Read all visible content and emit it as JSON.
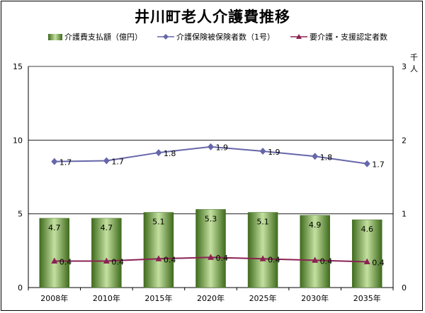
{
  "title": "井川町老人介護費推移",
  "unit_right": "千人",
  "legend": {
    "cost": "介護費支払額（億円）",
    "insured": "介護保険被保険者数（1号）",
    "certified": "要介護・支援認定者数"
  },
  "colors": {
    "bar_dark": "#3f6b1d",
    "bar_light": "#c4e0a0",
    "insured_line": "#6666aa",
    "certified_line": "#8b2252"
  },
  "chart_data": {
    "type": "bar",
    "title": "井川町老人介護費推移",
    "categories": [
      "2008年",
      "2010年",
      "2015年",
      "2020年",
      "2025年",
      "2030年",
      "2035年"
    ],
    "series": [
      {
        "name": "介護費支払額（億円）",
        "type": "bar",
        "axis": "left",
        "values": [
          4.7,
          4.7,
          5.1,
          5.3,
          5.1,
          4.9,
          4.6
        ]
      },
      {
        "name": "介護保険被保険者数（1号）",
        "type": "line",
        "axis": "right",
        "marker": "diamond",
        "values": [
          1.7,
          1.7,
          1.8,
          1.9,
          1.9,
          1.8,
          1.7
        ],
        "plot_values": [
          1.71,
          1.72,
          1.83,
          1.91,
          1.85,
          1.78,
          1.68
        ]
      },
      {
        "name": "要介護・支援認定者数",
        "type": "line",
        "axis": "right",
        "marker": "triangle",
        "values": [
          0.4,
          0.4,
          0.4,
          0.4,
          0.4,
          0.4,
          0.4
        ],
        "plot_values": [
          0.36,
          0.36,
          0.39,
          0.41,
          0.39,
          0.37,
          0.35
        ]
      }
    ],
    "y_left": {
      "min": 0,
      "max": 15,
      "ticks": [
        "0",
        "5",
        "10",
        "15"
      ]
    },
    "y_right": {
      "min": 0,
      "max": 3,
      "ticks": [
        "0",
        "1",
        "2",
        "3"
      ],
      "unit": "千人"
    },
    "grid": true,
    "legend_position": "top"
  }
}
